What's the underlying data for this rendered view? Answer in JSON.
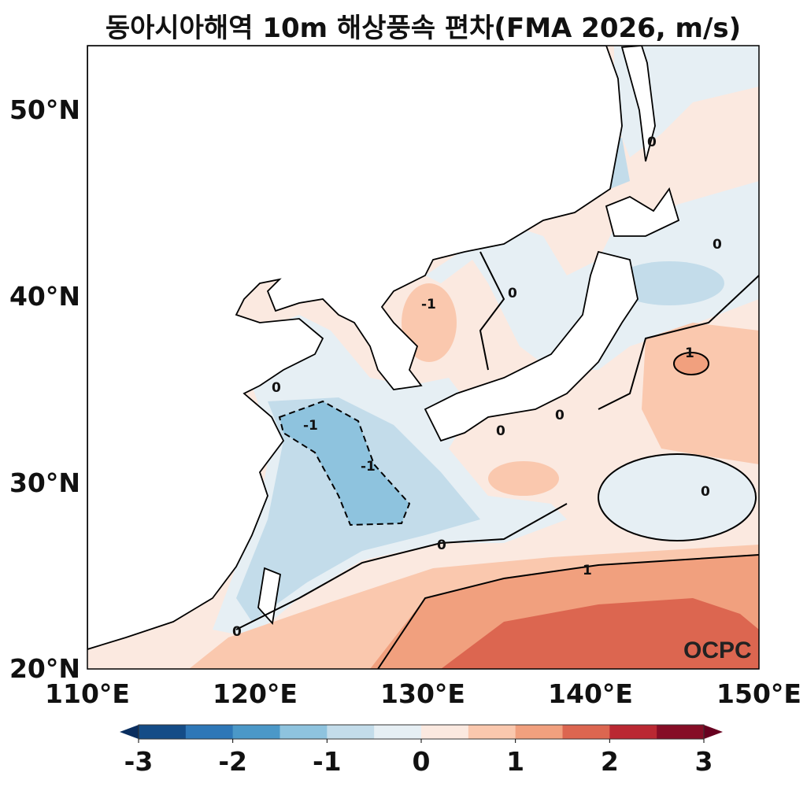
{
  "title": "동아시아해역 10m 해상풍속 편차(FMA 2026, m/s)",
  "map": {
    "projection": "PlateCarree",
    "lon_range": [
      110,
      150
    ],
    "lat_range": [
      20,
      53.3
    ],
    "lat_labels": [
      "50°N",
      "40°N",
      "30°N",
      "20°N"
    ],
    "lon_labels": [
      "110°E",
      "120°E",
      "130°E",
      "140°E",
      "150°E"
    ],
    "contour_labels": [
      "0",
      "0",
      "0",
      "0",
      "0",
      "1",
      "0",
      "0",
      "0",
      "-1",
      "-1",
      "0",
      "-1",
      "0",
      "0",
      "0",
      "1",
      "0",
      "0",
      "1",
      "0"
    ],
    "logo": "OCPC"
  },
  "colorbar": {
    "levels": [
      -3,
      -2.5,
      -2,
      -1.5,
      -1,
      -0.5,
      0,
      0.5,
      1,
      1.5,
      2,
      2.5,
      3
    ],
    "colors": [
      "#144c87",
      "#2e77b7",
      "#4b98c8",
      "#8ec3de",
      "#c3dcea",
      "#e6eff4",
      "#fbe9e0",
      "#fac8ae",
      "#f1a07e",
      "#dc6650",
      "#ba2832",
      "#860d26"
    ],
    "extend_colors": [
      "#0a2e5f",
      "#67001f"
    ],
    "tick_labels": [
      "-3",
      "-2",
      "-1",
      "0",
      "1",
      "2",
      "3"
    ]
  }
}
